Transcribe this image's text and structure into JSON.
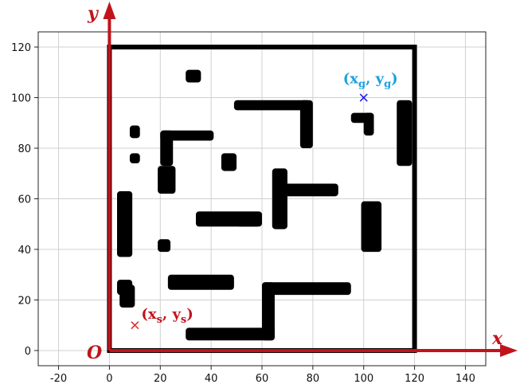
{
  "chart_data": {
    "type": "scatter",
    "title": "",
    "xlabel": "x",
    "ylabel": "y",
    "origin_label": "O",
    "xlim": [
      -28,
      148
    ],
    "ylim": [
      -6,
      126
    ],
    "x_ticks": [
      -20,
      0,
      20,
      40,
      60,
      80,
      100,
      120,
      140
    ],
    "y_ticks": [
      0,
      20,
      40,
      60,
      80,
      100,
      120
    ],
    "grid": true,
    "colors": {
      "obstacle": "#000000",
      "frame": "#c0141c",
      "start": "#e03030",
      "goal": "#2020e0",
      "goal_label": "#1aa0e0",
      "start_label": "#c0141c"
    },
    "boundary": {
      "x": [
        0,
        120
      ],
      "y": [
        0,
        120
      ]
    },
    "obstacles": [
      {
        "x": [
          30,
          36
        ],
        "y": [
          106,
          111
        ]
      },
      {
        "x": [
          49,
          79
        ],
        "y": [
          95,
          99
        ]
      },
      {
        "x": [
          75,
          80
        ],
        "y": [
          80,
          99
        ]
      },
      {
        "x": [
          95,
          104
        ],
        "y": [
          90,
          94
        ]
      },
      {
        "x": [
          100,
          104
        ],
        "y": [
          85,
          94
        ]
      },
      {
        "x": [
          113,
          119
        ],
        "y": [
          73,
          99
        ]
      },
      {
        "x": [
          8,
          12
        ],
        "y": [
          84,
          89
        ]
      },
      {
        "x": [
          8,
          12
        ],
        "y": [
          74,
          78
        ]
      },
      {
        "x": [
          20,
          41
        ],
        "y": [
          83,
          87
        ]
      },
      {
        "x": [
          20,
          25
        ],
        "y": [
          73,
          87
        ]
      },
      {
        "x": [
          19,
          26
        ],
        "y": [
          62,
          73
        ]
      },
      {
        "x": [
          44,
          50
        ],
        "y": [
          71,
          78
        ]
      },
      {
        "x": [
          64,
          70
        ],
        "y": [
          48,
          72
        ]
      },
      {
        "x": [
          68,
          90
        ],
        "y": [
          61,
          66
        ]
      },
      {
        "x": [
          3,
          9
        ],
        "y": [
          37,
          63
        ]
      },
      {
        "x": [
          34,
          60
        ],
        "y": [
          49,
          55
        ]
      },
      {
        "x": [
          50,
          59
        ],
        "y": [
          49,
          53
        ]
      },
      {
        "x": [
          99,
          107
        ],
        "y": [
          39,
          59
        ]
      },
      {
        "x": [
          19,
          24
        ],
        "y": [
          39,
          44
        ]
      },
      {
        "x": [
          3,
          9
        ],
        "y": [
          22,
          28
        ]
      },
      {
        "x": [
          4,
          10
        ],
        "y": [
          17,
          26
        ]
      },
      {
        "x": [
          23,
          49
        ],
        "y": [
          24,
          30
        ]
      },
      {
        "x": [
          60,
          95
        ],
        "y": [
          22,
          27
        ]
      },
      {
        "x": [
          60,
          65
        ],
        "y": [
          4,
          27
        ]
      },
      {
        "x": [
          30,
          65
        ],
        "y": [
          4,
          9
        ]
      }
    ],
    "start": {
      "x": 10,
      "y": 10,
      "label": "(x",
      "label_sub": "s",
      "label_sep": ", y",
      "label_sub2": "s",
      "label_end": ")"
    },
    "goal": {
      "x": 100,
      "y": 100,
      "label": "(x",
      "label_sub": "g",
      "label_sep": ", y",
      "label_sub2": "g",
      "label_end": ")"
    }
  }
}
